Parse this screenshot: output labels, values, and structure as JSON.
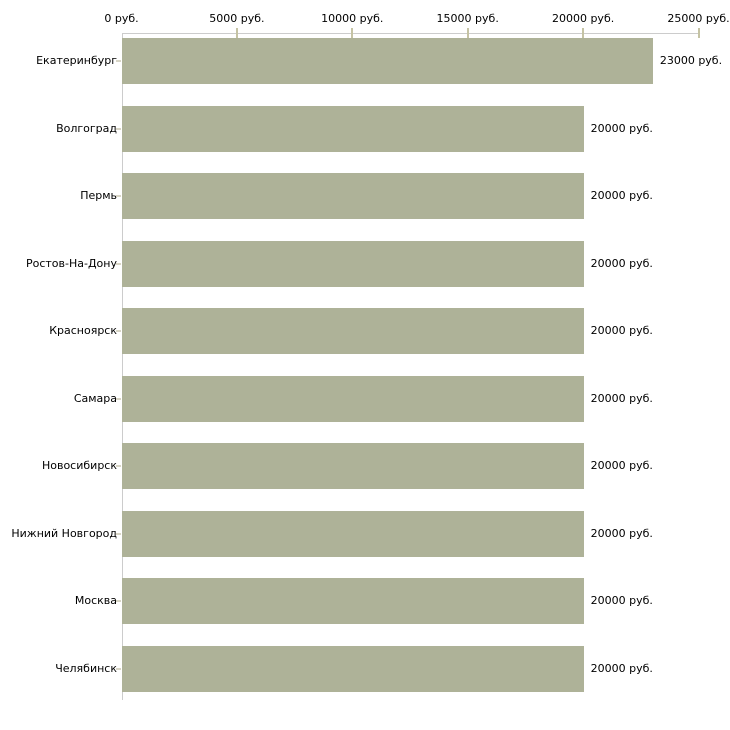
{
  "chart_data": {
    "type": "bar",
    "orientation": "horizontal",
    "title": "",
    "categories": [
      "Екатеринбург",
      "Волгоград",
      "Пермь",
      "Ростов-На-Дону",
      "Красноярск",
      "Самара",
      "Новосибирск",
      "Нижний Новгород",
      "Москва",
      "Челябинск"
    ],
    "values": [
      23000,
      20000,
      20000,
      20000,
      20000,
      20000,
      20000,
      20000,
      20000,
      20000
    ],
    "value_labels": [
      "23000 руб.",
      "20000 руб.",
      "20000 руб.",
      "20000 руб.",
      "20000 руб.",
      "20000 руб.",
      "20000 руб.",
      "20000 руб.",
      "20000 руб.",
      "20000 руб."
    ],
    "x_tick_values": [
      0,
      5000,
      10000,
      15000,
      20000,
      25000
    ],
    "x_tick_labels": [
      "0 руб.",
      "5000 руб.",
      "10000 руб.",
      "15000 руб.",
      "20000 руб.",
      "25000 руб."
    ],
    "xlim": [
      0,
      25000
    ],
    "unit": "руб.",
    "grid": false,
    "legend": "none",
    "colors": {
      "bar": "#aeb298",
      "axis_line": "#cccccc",
      "x_tick_mark": "#c5c3a4",
      "category_tick_mark": "#d8d5c6",
      "text": "#000000",
      "background": "#ffffff"
    }
  }
}
